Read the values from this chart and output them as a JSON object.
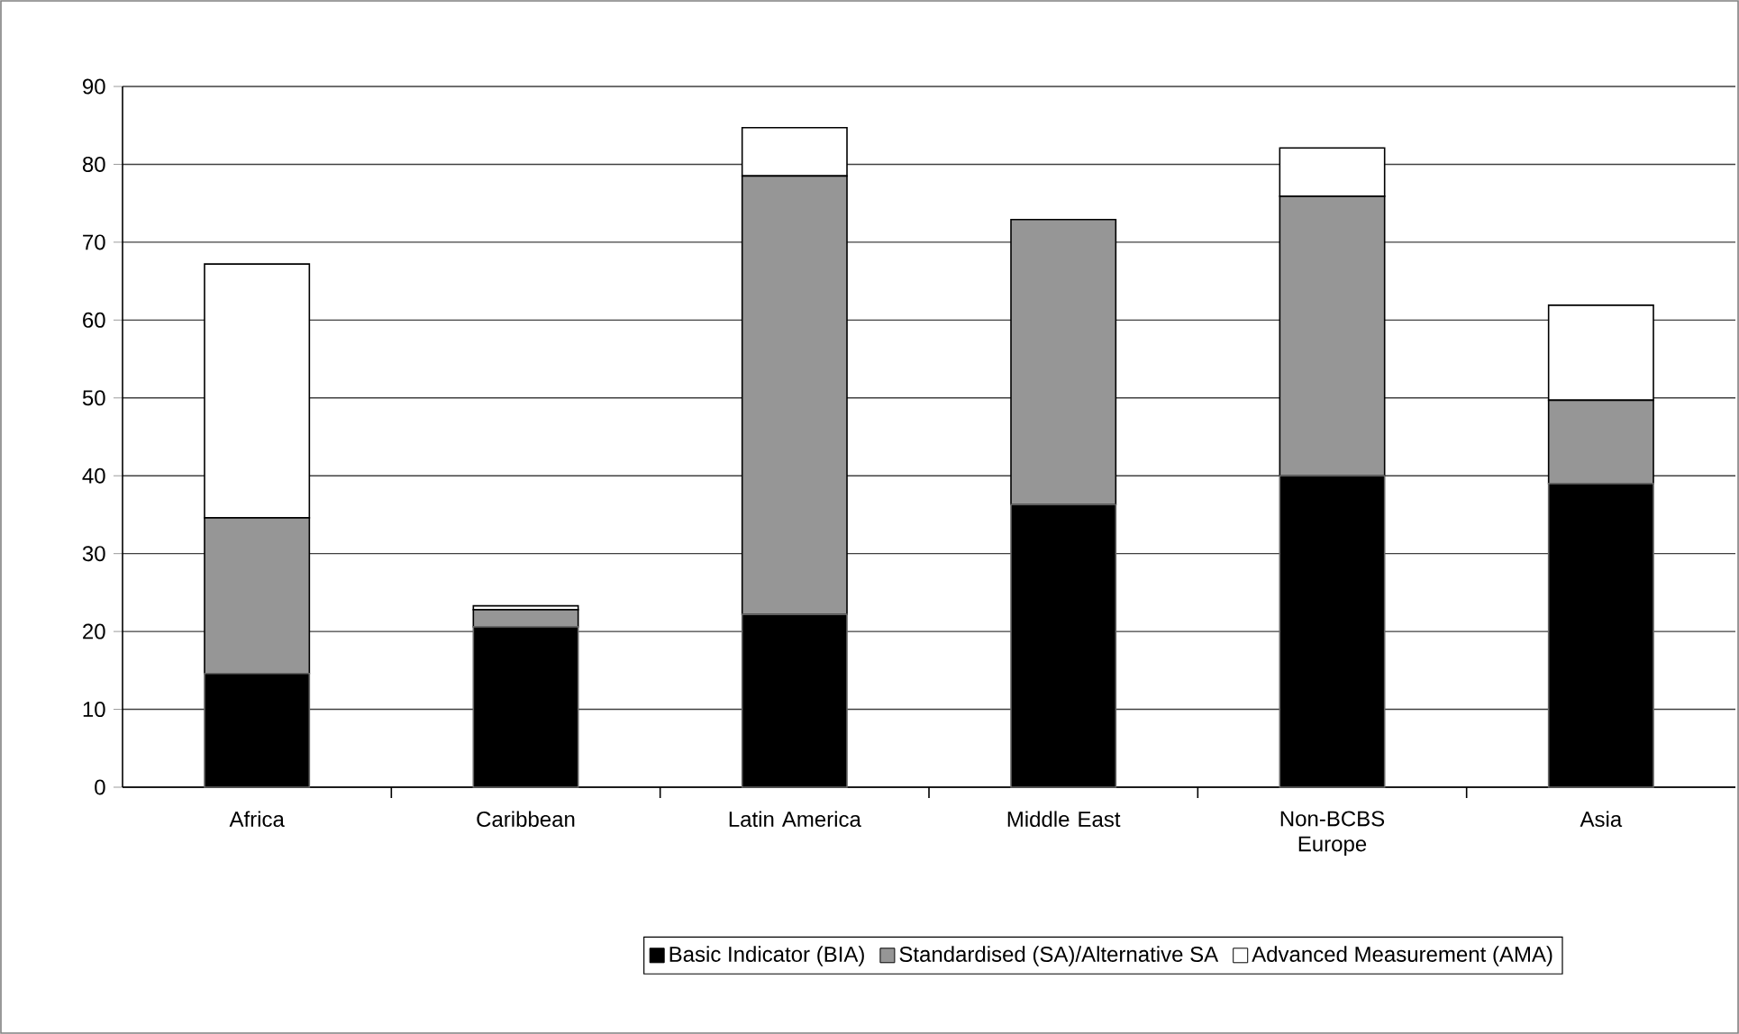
{
  "chart_data": {
    "type": "bar",
    "stacked": true,
    "categories": [
      "Africa",
      "Caribbean",
      "Latin America",
      "Middle East",
      "Non-BCBS Europe",
      "Asia"
    ],
    "series": [
      {
        "name": "Basic Indicator (BIA)",
        "color": "#000000",
        "values": [
          14.6,
          20.6,
          22.2,
          36.3,
          40.0,
          39.0
        ]
      },
      {
        "name": "Standardised (SA)/Alternative SA",
        "color": "#969696",
        "values": [
          20.0,
          2.2,
          56.3,
          36.6,
          35.9,
          10.7
        ]
      },
      {
        "name": "Advanced Measurement (AMA)",
        "color": "#ffffff",
        "values": [
          32.6,
          0.5,
          6.2,
          0,
          6.2,
          12.2
        ]
      }
    ],
    "ylim": [
      0,
      90
    ],
    "yticks": [
      0,
      10,
      20,
      30,
      40,
      50,
      60,
      70,
      80,
      90
    ],
    "grid": "y",
    "legend": "bottom"
  }
}
